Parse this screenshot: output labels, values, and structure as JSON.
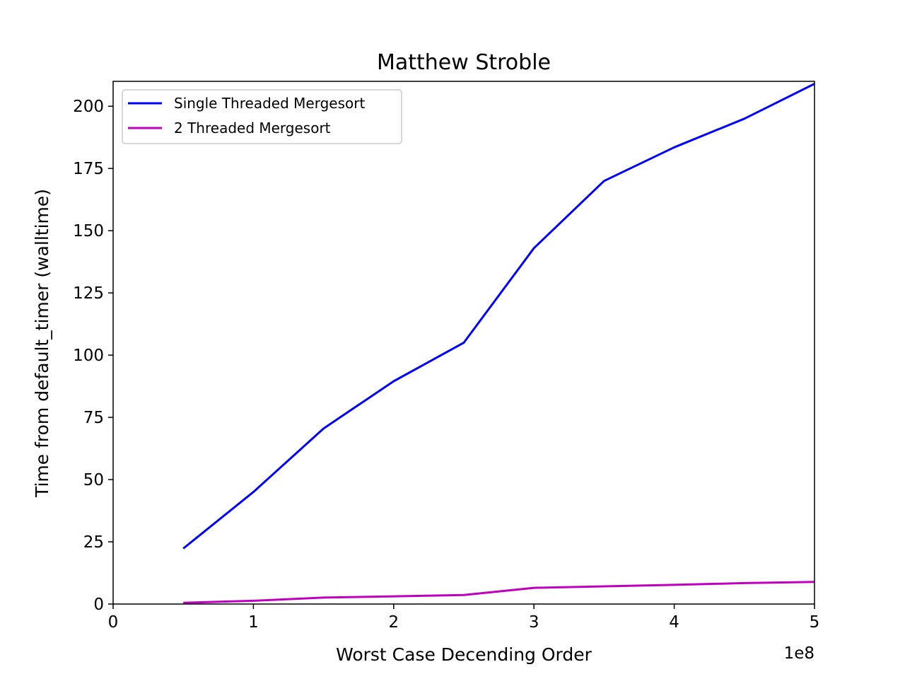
{
  "chart_data": {
    "type": "line",
    "title": "Matthew Stroble",
    "xlabel": "Worst Case Decending Order",
    "ylabel": "Time from default_timer (walltime)",
    "x_offset_label": "1e8",
    "xlim": [
      0,
      5
    ],
    "ylim": [
      0,
      210
    ],
    "x_ticks": [
      0,
      1,
      2,
      3,
      4,
      5
    ],
    "x_tick_labels": [
      "0",
      "1",
      "2",
      "3",
      "4",
      "5"
    ],
    "y_ticks": [
      0,
      25,
      50,
      75,
      100,
      125,
      150,
      175,
      200
    ],
    "y_tick_labels": [
      "0",
      "25",
      "50",
      "75",
      "100",
      "125",
      "150",
      "175",
      "200"
    ],
    "grid": false,
    "legend_position": "upper-left",
    "x": [
      0.5,
      1.0,
      1.5,
      2.0,
      2.5,
      3.0,
      3.5,
      4.0,
      4.5,
      5.0
    ],
    "series": [
      {
        "name": "Single Threaded Mergesort",
        "color": "#0000ff",
        "values": [
          22.3,
          45.0,
          70.5,
          89.5,
          105.0,
          143.0,
          170.0,
          183.5,
          195.0,
          209.0
        ]
      },
      {
        "name": "2 Threaded Mergesort",
        "color": "#bf00bf",
        "values": [
          0.5,
          1.3,
          2.6,
          3.1,
          3.6,
          6.5,
          7.1,
          7.7,
          8.4,
          8.9
        ]
      }
    ]
  }
}
